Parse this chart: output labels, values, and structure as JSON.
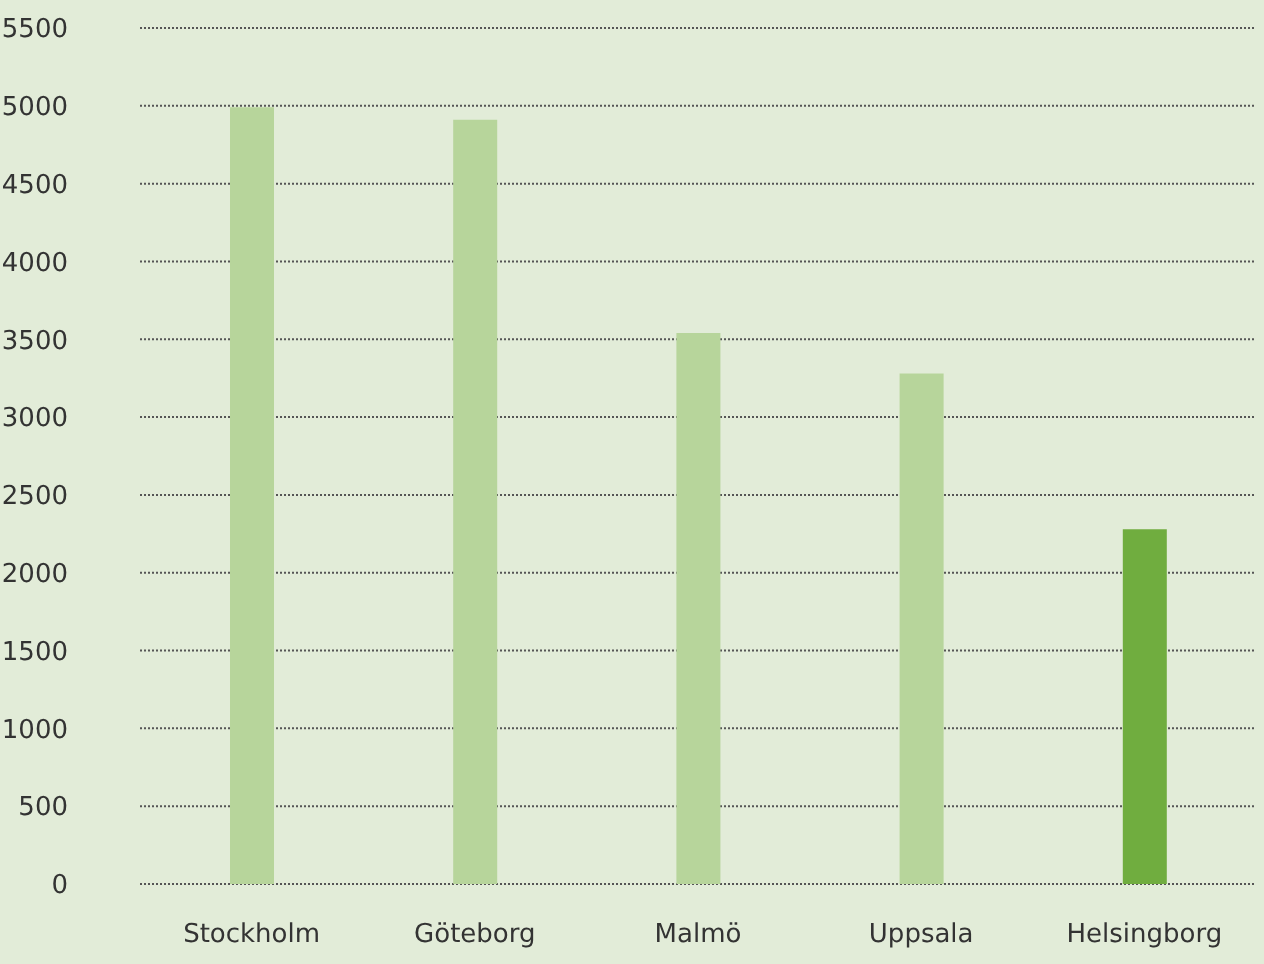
{
  "chart_data": {
    "type": "bar",
    "categories": [
      "Stockholm",
      "Göteborg",
      "Malmö",
      "Uppsala",
      "Helsingborg"
    ],
    "values": [
      4990,
      4910,
      3540,
      3280,
      2280
    ],
    "colors": [
      "#b7d59b",
      "#b7d59b",
      "#b7d59b",
      "#b7d59b",
      "#70ad3f"
    ],
    "ylim": [
      0,
      5500
    ],
    "yticks": [
      0,
      500,
      1000,
      1500,
      2000,
      2500,
      3000,
      3500,
      4000,
      4500,
      5000,
      5500
    ],
    "grid": "y"
  }
}
